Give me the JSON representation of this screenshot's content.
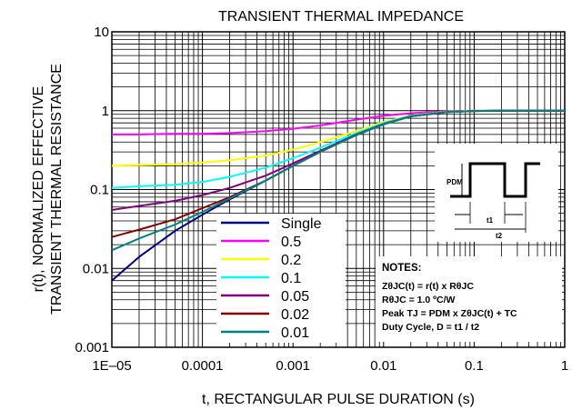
{
  "chart_data": {
    "type": "line",
    "title": "TRANSIENT THERMAL IMPEDANCE",
    "xlabel": "t, RECTANGULAR PULSE DURATION (s)",
    "ylabel_line1": "r(t), NORMALIZED EFFECTIVE",
    "ylabel_line2": "TRANSIENT THERMAL RESISTANCE",
    "x_scale": "log",
    "y_scale": "log",
    "xlim": [
      1e-05,
      1
    ],
    "ylim": [
      0.001,
      10
    ],
    "x_tick_labels": [
      "1E–05",
      "0.0001",
      "0.001",
      "0.01",
      "0.1",
      "1"
    ],
    "y_tick_labels": [
      "0.001",
      "0.01",
      "0.1",
      "1",
      "10"
    ],
    "grid": true,
    "legend_position": "lower-left",
    "x": [
      1e-05,
      2e-05,
      5e-05,
      0.0001,
      0.0002,
      0.0005,
      0.001,
      0.002,
      0.005,
      0.01,
      0.02,
      0.05,
      0.1,
      0.2,
      0.5,
      1
    ],
    "series": [
      {
        "name": "Single",
        "color": "#000080",
        "values": [
          0.007,
          0.014,
          0.03,
          0.048,
          0.075,
          0.13,
          0.2,
          0.3,
          0.5,
          0.68,
          0.85,
          0.96,
          0.99,
          1.0,
          1.0,
          1.0
        ]
      },
      {
        "name": "0.5",
        "color": "#ff00ff",
        "values": [
          0.5,
          0.5,
          0.51,
          0.51,
          0.52,
          0.55,
          0.59,
          0.65,
          0.77,
          0.86,
          0.93,
          0.98,
          1.0,
          1.0,
          1.0,
          1.0
        ]
      },
      {
        "name": "0.2",
        "color": "#ffff00",
        "values": [
          0.2,
          0.205,
          0.21,
          0.22,
          0.235,
          0.27,
          0.32,
          0.4,
          0.55,
          0.72,
          0.87,
          0.97,
          1.0,
          1.0,
          1.0,
          1.0
        ]
      },
      {
        "name": "0.1",
        "color": "#00ffff",
        "values": [
          0.105,
          0.11,
          0.115,
          0.125,
          0.145,
          0.19,
          0.25,
          0.34,
          0.52,
          0.7,
          0.86,
          0.96,
          0.99,
          1.0,
          1.0,
          1.0
        ]
      },
      {
        "name": "0.05",
        "color": "#800080",
        "values": [
          0.055,
          0.062,
          0.072,
          0.085,
          0.105,
          0.15,
          0.215,
          0.31,
          0.5,
          0.68,
          0.85,
          0.96,
          0.99,
          1.0,
          1.0,
          1.0
        ]
      },
      {
        "name": "0.02",
        "color": "#800000",
        "values": [
          0.025,
          0.031,
          0.042,
          0.058,
          0.08,
          0.13,
          0.2,
          0.3,
          0.49,
          0.67,
          0.85,
          0.96,
          0.99,
          1.0,
          1.0,
          1.0
        ]
      },
      {
        "name": "0.01",
        "color": "#008080",
        "values": [
          0.017,
          0.024,
          0.036,
          0.052,
          0.077,
          0.13,
          0.2,
          0.3,
          0.49,
          0.67,
          0.85,
          0.96,
          0.99,
          1.0,
          1.0,
          1.0
        ]
      }
    ],
    "notes": {
      "title": "NOTES:",
      "line1": "ZθJC(t) = r(t) x RθJC",
      "line2": "RθJC = 1.0 ºC/W",
      "line3": "Peak TJ = PDM x ZθJC(t) + TC",
      "line4": "Duty Cycle, D = t1 / t2"
    },
    "inset": {
      "pdm": "PDM",
      "t1": "t1",
      "t2": "t2"
    }
  }
}
